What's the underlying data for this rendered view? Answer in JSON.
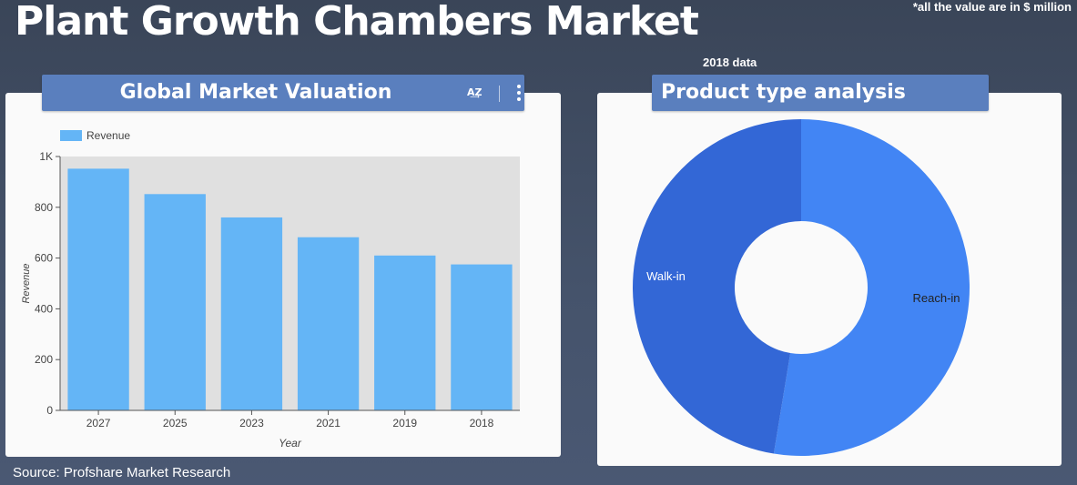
{
  "header": {
    "title": "Plant Growth Chambers Market",
    "note": "*all the value are in $ million",
    "data_year": "2018 data"
  },
  "footer": {
    "source": "Source: Profshare Market Research"
  },
  "panels": {
    "bar_title": "Global Market Valuation",
    "pie_title": "Product type analysis",
    "sort_icon_glyph": "A͢Z"
  },
  "colors": {
    "bar": "#64b5f6",
    "plot_bg": "#e0e0e0",
    "header_bg": "#5a7fbe",
    "reach_in": "#4285f4",
    "walk_in": "#3367d6"
  },
  "chart_data": [
    {
      "type": "bar",
      "title": "Global Market Valuation",
      "categories": [
        "2027",
        "2025",
        "2023",
        "2021",
        "2019",
        "2018"
      ],
      "series": [
        {
          "name": "Revenue",
          "values": [
            952,
            852,
            760,
            682,
            610,
            575
          ]
        }
      ],
      "xlabel": "Year",
      "ylabel": "Revenue",
      "ylim": [
        0,
        1000
      ],
      "yticks": [
        0,
        200,
        400,
        600,
        800,
        1000
      ],
      "ytick_labels": [
        "0",
        "200",
        "400",
        "600",
        "800",
        "1K"
      ],
      "legend": "top-left",
      "grid": false
    },
    {
      "type": "pie",
      "title": "Product type analysis",
      "donut": true,
      "labels": [
        "Reach-in",
        "Walk-in"
      ],
      "values": [
        52.6,
        47.4
      ]
    }
  ]
}
